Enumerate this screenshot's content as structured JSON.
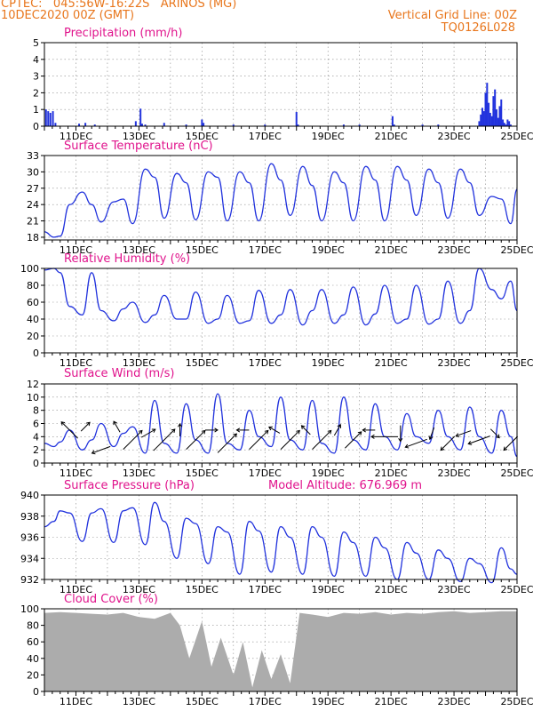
{
  "header": {
    "left_line1": "CPTEC:   045:56W-16:22S   ARINOS (MG)",
    "left_line2": "10DEC2020 00Z (GMT)",
    "right_line1": "Vertical Grid Line: 00Z",
    "right_line2": "TQ0126L028"
  },
  "colors": {
    "header": "#e8761c",
    "panel_title": "#e0138c",
    "series": "#2233dd",
    "cloud": "#a9a9a9",
    "wind_arrow": "#000000"
  },
  "x_ticks": [
    "11DEC",
    "13DEC",
    "15DEC",
    "17DEC",
    "19DEC",
    "21DEC",
    "23DEC",
    "25DEC"
  ],
  "chart_data": [
    {
      "type": "bar",
      "title": "Precipitation (mm/h)",
      "x_range_days": [
        10.0,
        25.0
      ],
      "ylim": [
        0,
        5
      ],
      "yticks": [
        0,
        1,
        2,
        3,
        4,
        5
      ],
      "x": [
        10.05,
        10.12,
        10.19,
        10.27,
        10.35,
        11.1,
        11.3,
        11.6,
        12.9,
        13.05,
        13.1,
        13.2,
        13.8,
        14.5,
        15.0,
        15.05,
        16.0,
        17.0,
        18.0,
        18.05,
        19.5,
        20.0,
        21.05,
        21.1,
        22.0,
        22.5,
        23.8,
        23.85,
        23.9,
        23.95,
        24.0,
        24.05,
        24.1,
        24.15,
        24.2,
        24.25,
        24.3,
        24.35,
        24.4,
        24.45,
        24.5,
        24.55,
        24.6,
        24.65,
        24.7,
        24.75,
        24.8
      ],
      "values": [
        1.0,
        0.9,
        0.8,
        0.9,
        0.2,
        0.15,
        0.2,
        0.1,
        0.3,
        1.05,
        0.15,
        0.1,
        0.2,
        0.1,
        0.4,
        0.2,
        0.1,
        0.1,
        0.85,
        0.1,
        0.1,
        0.1,
        0.6,
        0.1,
        0.1,
        0.1,
        0.3,
        0.7,
        1.1,
        0.9,
        2.0,
        2.6,
        1.4,
        0.8,
        0.6,
        1.8,
        2.2,
        1.0,
        0.5,
        1.2,
        1.6,
        0.4,
        0.2,
        0.1,
        0.4,
        0.3,
        0.1
      ]
    },
    {
      "type": "line",
      "title": "Surface Temperature (nC)",
      "x_range_days": [
        10.0,
        25.0
      ],
      "ylim": [
        17.5,
        33.0
      ],
      "yticks": [
        18,
        21,
        24,
        27,
        30,
        33
      ],
      "x": [
        10.0,
        10.3,
        10.5,
        10.8,
        11.2,
        11.5,
        11.8,
        12.2,
        12.5,
        12.8,
        13.2,
        13.5,
        13.8,
        14.2,
        14.5,
        14.8,
        15.2,
        15.5,
        15.8,
        16.2,
        16.5,
        16.8,
        17.2,
        17.5,
        17.8,
        18.2,
        18.5,
        18.8,
        19.2,
        19.5,
        19.8,
        20.2,
        20.5,
        20.8,
        21.2,
        21.5,
        21.8,
        22.2,
        22.5,
        22.8,
        23.2,
        23.5,
        23.8,
        24.2,
        24.5,
        24.8,
        25.0
      ],
      "values": [
        19.0,
        18.0,
        18.2,
        24.0,
        26.3,
        24.0,
        20.8,
        24.5,
        25.0,
        20.5,
        30.5,
        29.0,
        21.5,
        29.7,
        28.0,
        21.2,
        30.0,
        29.0,
        21.0,
        30.0,
        28.0,
        21.0,
        31.5,
        28.5,
        22.0,
        31.0,
        27.5,
        21.0,
        30.0,
        28.0,
        21.0,
        31.0,
        28.5,
        21.0,
        31.0,
        28.5,
        22.0,
        30.5,
        28.0,
        21.5,
        30.5,
        28.0,
        22.0,
        25.5,
        25.0,
        20.5,
        26.8
      ]
    },
    {
      "type": "line",
      "title": "Relative Humidity (%)",
      "x_range_days": [
        10.0,
        25.0
      ],
      "ylim": [
        0,
        100
      ],
      "yticks": [
        0,
        20,
        40,
        60,
        80,
        100
      ],
      "x": [
        10.0,
        10.3,
        10.5,
        10.8,
        11.2,
        11.5,
        11.8,
        12.2,
        12.5,
        12.8,
        13.2,
        13.5,
        13.8,
        14.2,
        14.5,
        14.8,
        15.2,
        15.5,
        15.8,
        16.2,
        16.5,
        16.8,
        17.2,
        17.5,
        17.8,
        18.2,
        18.5,
        18.8,
        19.2,
        19.5,
        19.8,
        20.2,
        20.5,
        20.8,
        21.2,
        21.5,
        21.8,
        22.2,
        22.5,
        22.8,
        23.2,
        23.5,
        23.8,
        24.2,
        24.5,
        24.8,
        25.0
      ],
      "values": [
        98,
        100,
        95,
        55,
        45,
        95,
        50,
        38,
        52,
        60,
        36,
        45,
        68,
        40,
        40,
        72,
        35,
        40,
        68,
        35,
        38,
        74,
        35,
        45,
        75,
        33,
        50,
        75,
        35,
        45,
        78,
        33,
        46,
        80,
        35,
        40,
        80,
        34,
        40,
        85,
        35,
        50,
        100,
        75,
        64,
        85,
        50
      ]
    },
    {
      "type": "line",
      "title": "Surface Wind (m/s)",
      "x_range_days": [
        10.0,
        25.0
      ],
      "ylim": [
        0,
        12
      ],
      "yticks": [
        0,
        2,
        4,
        6,
        8,
        10,
        12
      ],
      "x": [
        10.0,
        10.3,
        10.5,
        10.8,
        11.2,
        11.5,
        11.8,
        12.2,
        12.5,
        12.8,
        13.2,
        13.5,
        13.8,
        14.2,
        14.5,
        14.8,
        15.2,
        15.5,
        15.8,
        16.2,
        16.5,
        16.8,
        17.2,
        17.5,
        17.8,
        18.2,
        18.5,
        18.8,
        19.2,
        19.5,
        19.8,
        20.2,
        20.5,
        20.8,
        21.2,
        21.5,
        21.8,
        22.2,
        22.5,
        22.8,
        23.2,
        23.5,
        23.8,
        24.2,
        24.5,
        24.8,
        25.0
      ],
      "values": [
        3.0,
        2.5,
        3.2,
        5.0,
        2.0,
        3.5,
        6.0,
        2.5,
        4.5,
        5.5,
        1.5,
        9.5,
        3.0,
        1.5,
        9.0,
        3.5,
        1.5,
        10.5,
        3.0,
        2.0,
        8.0,
        4.0,
        2.5,
        10.0,
        3.5,
        2.0,
        9.5,
        3.0,
        1.5,
        10.0,
        3.5,
        2.0,
        9.0,
        4.0,
        2.0,
        7.5,
        4.0,
        3.0,
        8.0,
        4.0,
        2.0,
        8.5,
        4.0,
        1.5,
        8.0,
        4.0,
        1.0
      ],
      "arrows": {
        "x": [
          10.8,
          11.8,
          12.8,
          13.8,
          14.8,
          15.8,
          16.8,
          17.8,
          18.8,
          19.8,
          20.8,
          21.8,
          22.8,
          23.8,
          24.8,
          11.3,
          12.3,
          13.3,
          14.3,
          15.3,
          16.3,
          17.3,
          18.3,
          19.3,
          20.3,
          21.3,
          22.3,
          23.3,
          24.3
        ],
        "y": [
          5.0,
          2.0,
          3.5,
          3.5,
          3.5,
          3.0,
          3.5,
          3.5,
          3.5,
          3.5,
          4.0,
          3.0,
          3.0,
          3.5,
          3.0,
          5.5,
          5.5,
          4.5,
          5.0,
          5.0,
          5.0,
          5.0,
          5.0,
          5.0,
          5.0,
          4.5,
          4.5,
          4.5,
          4.5
        ],
        "speed": [
          5.0,
          4.0,
          6.0,
          7.0,
          6.0,
          6.0,
          6.0,
          6.0,
          6.0,
          5.0,
          6.0,
          5.0,
          4.0,
          5.0,
          4.0,
          2.0,
          2.0,
          3.0,
          2.0,
          2.0,
          2.0,
          2.0,
          2.0,
          2.0,
          2.0,
          3.0,
          2.0,
          3.0,
          2.0
        ],
        "direction_deg": [
          135,
          200,
          45,
          45,
          45,
          45,
          45,
          45,
          45,
          45,
          180,
          200,
          225,
          200,
          225,
          45,
          120,
          30,
          90,
          0,
          180,
          150,
          135,
          60,
          180,
          270,
          250,
          200,
          315
        ]
      }
    },
    {
      "type": "line",
      "title": "Surface Pressure (hPa)",
      "annotation": "Model Altitude: 676.969  m",
      "x_range_days": [
        10.0,
        25.0
      ],
      "ylim": [
        932,
        940
      ],
      "yticks": [
        932,
        934,
        936,
        938,
        940
      ],
      "x": [
        10.0,
        10.3,
        10.5,
        10.8,
        11.2,
        11.5,
        11.8,
        12.2,
        12.5,
        12.8,
        13.2,
        13.5,
        13.8,
        14.2,
        14.5,
        14.8,
        15.2,
        15.5,
        15.8,
        16.2,
        16.5,
        16.8,
        17.2,
        17.5,
        17.8,
        18.2,
        18.5,
        18.8,
        19.2,
        19.5,
        19.8,
        20.2,
        20.5,
        20.8,
        21.2,
        21.5,
        21.8,
        22.2,
        22.5,
        22.8,
        23.2,
        23.5,
        23.8,
        24.2,
        24.5,
        24.8,
        25.0
      ],
      "values": [
        937.0,
        937.5,
        938.5,
        938.3,
        935.6,
        938.3,
        938.7,
        935.5,
        938.5,
        938.8,
        935.3,
        939.3,
        937.5,
        934.0,
        937.8,
        937.3,
        933.5,
        937.0,
        936.5,
        932.5,
        937.5,
        936.6,
        932.7,
        937.0,
        936.0,
        932.5,
        937.0,
        936.0,
        932.3,
        936.5,
        935.5,
        932.3,
        936.0,
        935.0,
        932.0,
        935.5,
        934.5,
        932.0,
        934.8,
        934.0,
        931.8,
        934.0,
        933.5,
        931.7,
        935.0,
        933.0,
        932.5
      ]
    },
    {
      "type": "area",
      "title": "Cloud Cover (%)",
      "x_range_days": [
        10.0,
        25.0
      ],
      "ylim": [
        0,
        100
      ],
      "yticks": [
        0,
        20,
        40,
        60,
        80,
        100
      ],
      "x": [
        10.0,
        10.5,
        11.0,
        11.5,
        12.0,
        12.5,
        13.0,
        13.5,
        14.0,
        14.3,
        14.6,
        15.0,
        15.3,
        15.6,
        16.0,
        16.3,
        16.6,
        16.9,
        17.2,
        17.5,
        17.8,
        18.1,
        18.5,
        19.0,
        19.5,
        20.0,
        20.5,
        21.0,
        21.5,
        22.0,
        22.5,
        23.0,
        23.5,
        24.0,
        24.5,
        25.0
      ],
      "values": [
        95,
        96,
        95,
        94,
        93,
        95,
        90,
        88,
        95,
        80,
        40,
        85,
        30,
        65,
        20,
        60,
        5,
        50,
        15,
        45,
        10,
        95,
        93,
        90,
        95,
        94,
        96,
        93,
        95,
        94,
        96,
        97,
        95,
        96,
        97,
        97
      ]
    }
  ]
}
